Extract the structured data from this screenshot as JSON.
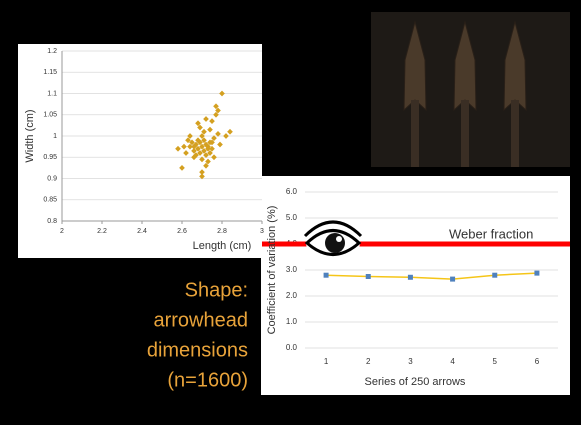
{
  "chart_data": [
    {
      "type": "scatter",
      "x_label": "Length (cm)",
      "y_label": "Width (cm)",
      "color": "#d4a020",
      "xlim": [
        2,
        3
      ],
      "xticks": [
        2,
        2.2,
        2.4,
        2.6,
        2.8,
        3
      ],
      "ylim": [
        0.8,
        1.2
      ],
      "yticks": [
        0.8,
        0.85,
        0.9,
        0.95,
        1,
        1.05,
        1.1,
        1.15,
        1.2
      ],
      "grid": true,
      "x": [
        2.7,
        2.72,
        2.68,
        2.74,
        2.66,
        2.71,
        2.69,
        2.73,
        2.75,
        2.67,
        2.7,
        2.72,
        2.64,
        2.76,
        2.78,
        2.62,
        2.7,
        2.68,
        2.74,
        2.71,
        2.65,
        2.73,
        2.69,
        2.77,
        2.63,
        2.8,
        2.77,
        2.6,
        2.82,
        2.84,
        2.58,
        2.72,
        2.66,
        2.75,
        2.7,
        2.79,
        2.61,
        2.74,
        2.68,
        2.71,
        2.76,
        2.64,
        2.73,
        2.69,
        2.67,
        2.72,
        2.7,
        2.75,
        2.66,
        2.78
      ],
      "y": [
        0.975,
        0.98,
        0.97,
        0.985,
        0.965,
        0.99,
        0.96,
        0.975,
        0.97,
        0.98,
        1.0,
        0.955,
        0.975,
        0.995,
        1.005,
        0.96,
        0.945,
        0.99,
        0.96,
        1.01,
        0.985,
        0.94,
        1.02,
        1.05,
        0.99,
        1.1,
        1.07,
        0.925,
        1.0,
        1.01,
        0.97,
        0.93,
        0.95,
        1.035,
        0.915,
        0.98,
        0.975,
        1.015,
        1.03,
        0.965,
        0.95,
        1.0,
        0.97,
        0.985,
        0.955,
        1.04,
        0.905,
        0.985,
        0.975,
        1.06
      ]
    },
    {
      "type": "line",
      "x_label": "Series of 250 arrows",
      "y_label": "Coefficient of variation (%)",
      "categories": [
        "1",
        "2",
        "3",
        "4",
        "5",
        "6"
      ],
      "series": [
        {
          "color": "#f5c518",
          "marker_color": "#4f81bd",
          "values": [
            2.8,
            2.75,
            2.72,
            2.65,
            2.8,
            2.88
          ]
        }
      ],
      "ylim": [
        0,
        6
      ],
      "yticks": [
        {
          "value": 0,
          "label": "0.0"
        },
        {
          "value": 1,
          "label": "1.0"
        },
        {
          "value": 2,
          "label": "2.0"
        },
        {
          "value": 3,
          "label": "3.0"
        },
        {
          "value": 4,
          "label": "4.0"
        },
        {
          "value": 5,
          "label": "5.0"
        },
        {
          "value": 6,
          "label": "6.0"
        }
      ],
      "grid": true,
      "reference_line": {
        "value": 4,
        "label": "Weber fraction",
        "color": "#ff0000"
      }
    }
  ],
  "caption": [
    "Shape:",
    "arrowhead",
    "dimensions",
    "(n=1600)"
  ]
}
